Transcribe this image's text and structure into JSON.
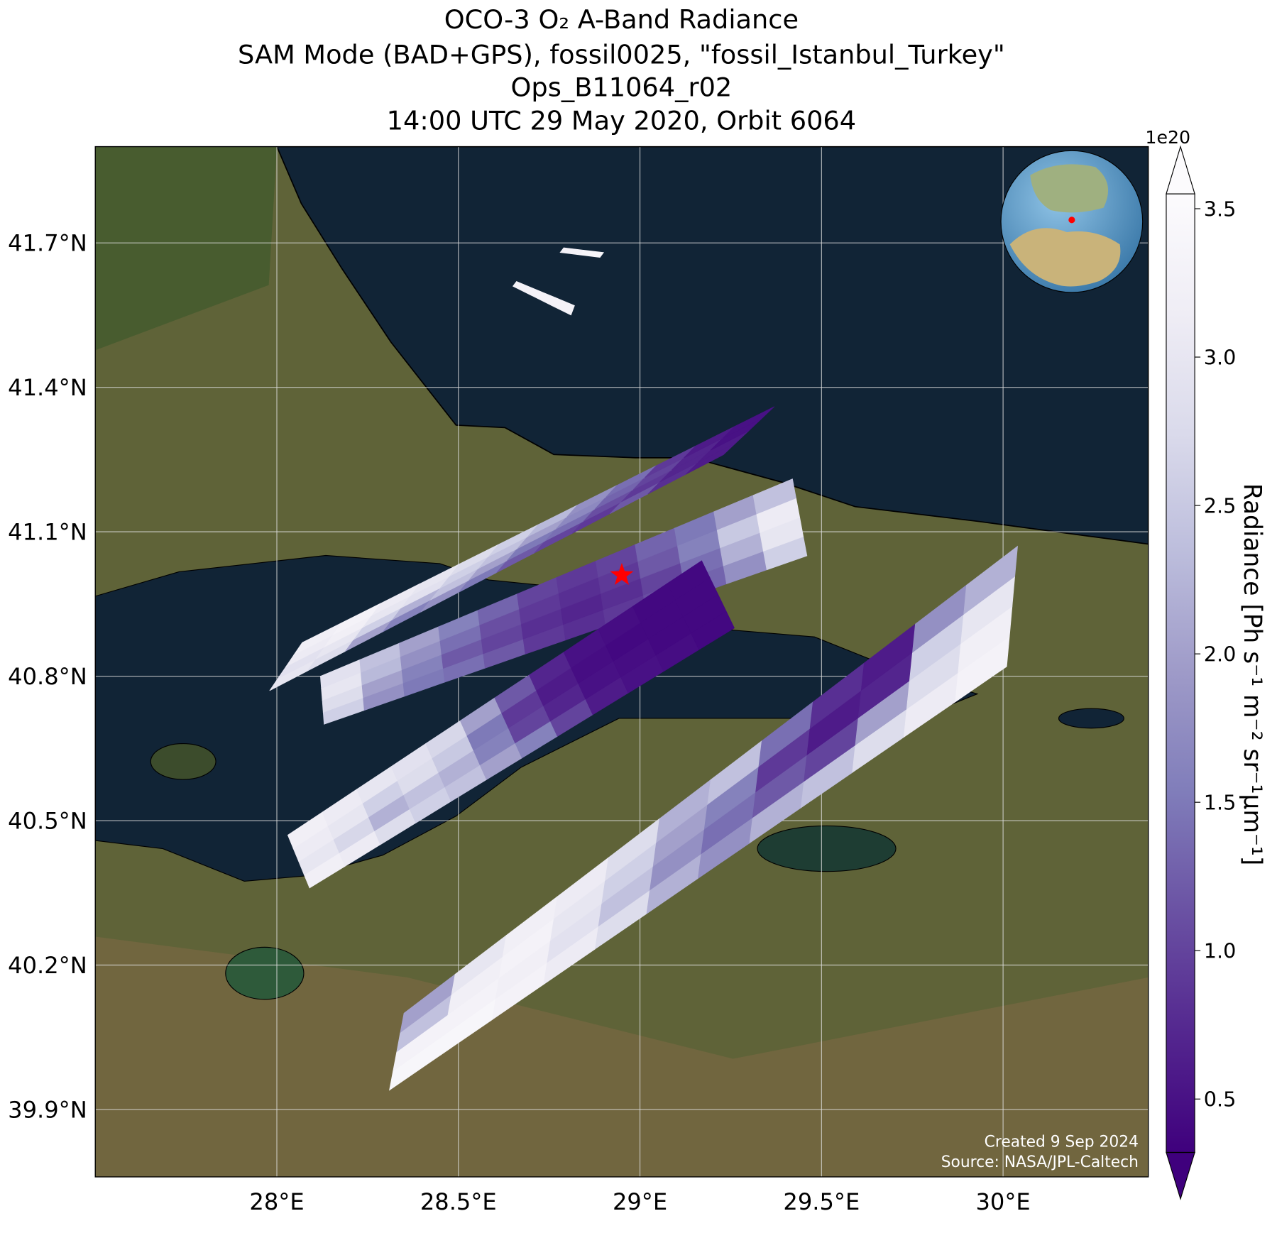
{
  "chart_data": {
    "type": "map",
    "title_lines": [
      "OCO-3 O₂ A-Band Radiance",
      "SAM Mode (BAD+GPS), fossil0025, \"fossil_Istanbul_Turkey\"",
      "Ops_B11064_r02",
      "14:00 UTC 29 May 2020, Orbit 6064"
    ],
    "xlim": [
      27.5,
      30.4
    ],
    "ylim": [
      39.76,
      41.9
    ],
    "xticks": [
      {
        "value": 28,
        "label": "28°E"
      },
      {
        "value": 28.5,
        "label": "28.5°E"
      },
      {
        "value": 29,
        "label": "29°E"
      },
      {
        "value": 29.5,
        "label": "29.5°E"
      },
      {
        "value": 30,
        "label": "30°E"
      }
    ],
    "yticks": [
      {
        "value": 39.9,
        "label": "39.9°N"
      },
      {
        "value": 40.2,
        "label": "40.2°N"
      },
      {
        "value": 40.5,
        "label": "40.5°N"
      },
      {
        "value": 40.8,
        "label": "40.8°N"
      },
      {
        "value": 41.1,
        "label": "41.1°N"
      },
      {
        "value": 41.4,
        "label": "41.4°N"
      },
      {
        "value": 41.7,
        "label": "41.7°N"
      }
    ],
    "grid": true,
    "colorbar": {
      "label": "Radiance [Ph s⁻¹ m⁻² sr⁻¹μm⁻¹]",
      "exponent_label": "1e20",
      "clim": [
        0.32,
        3.55
      ],
      "ticks": [
        0.5,
        {
          "value": 1,
          "label": "1.0"
        },
        1.5,
        {
          "value": 2,
          "label": "2.0"
        },
        2.5,
        {
          "value": 3,
          "label": "3.0"
        },
        3.5
      ],
      "colormap": [
        "#3f007d",
        "#54278f",
        "#6a51a3",
        "#807dba",
        "#9e9ac8",
        "#bcbddc",
        "#dadaeb",
        "#efedf5",
        "#fcfbfd"
      ]
    },
    "swaths": [
      {
        "corners": [
          [
            27.98,
            40.77
          ],
          [
            29.23,
            41.26
          ],
          [
            29.37,
            41.36
          ],
          [
            28.07,
            40.87
          ]
        ],
        "values": [
          [
            3.0,
            2.8,
            2.0,
            1.6,
            1.8,
            1.5,
            1.2,
            1.0,
            0.9,
            1.2,
            0.8,
            0.6
          ],
          [
            2.9,
            3.0,
            2.6,
            2.2,
            2.4,
            2.0,
            1.5,
            1.4,
            1.1,
            0.9,
            0.7,
            0.6
          ],
          [
            3.1,
            3.2,
            3.0,
            2.9,
            2.6,
            2.4,
            2.0,
            1.7,
            1.3,
            1.0,
            0.7,
            0.5
          ],
          [
            3.2,
            3.3,
            3.1,
            3.0,
            2.8,
            2.6,
            2.3,
            1.8,
            1.4,
            0.9,
            0.6,
            0.5
          ]
        ]
      },
      {
        "corners": [
          [
            28.13,
            40.7
          ],
          [
            29.46,
            41.05
          ],
          [
            29.42,
            41.21
          ],
          [
            28.12,
            40.8
          ]
        ],
        "values": [
          [
            2.6,
            1.8,
            1.5,
            1.4,
            1.2,
            0.9,
            0.8,
            0.9,
            1.1,
            1.3,
            1.8,
            2.6
          ],
          [
            2.8,
            2.0,
            1.6,
            1.2,
            1.0,
            0.8,
            0.7,
            0.8,
            1.0,
            1.4,
            2.2,
            3.0
          ],
          [
            3.0,
            2.3,
            1.8,
            1.4,
            1.1,
            0.9,
            0.8,
            0.9,
            1.2,
            1.6,
            2.5,
            3.1
          ],
          [
            2.9,
            2.4,
            2.0,
            1.6,
            1.3,
            1.0,
            0.9,
            1.0,
            1.3,
            1.5,
            2.0,
            2.4
          ]
        ]
      },
      {
        "corners": [
          [
            28.09,
            40.36
          ],
          [
            29.26,
            40.9
          ],
          [
            29.17,
            41.04
          ],
          [
            28.03,
            40.47
          ]
        ],
        "values": [
          [
            3.2,
            3.1,
            2.8,
            2.6,
            2.4,
            2.0,
            1.6,
            1.0,
            0.6,
            0.5,
            0.45,
            0.4
          ],
          [
            3.0,
            2.7,
            2.2,
            2.4,
            2.2,
            1.6,
            1.0,
            0.7,
            0.5,
            0.45,
            0.4,
            0.4
          ],
          [
            3.1,
            3.0,
            2.6,
            2.8,
            2.5,
            1.5,
            0.9,
            0.6,
            0.45,
            0.4,
            0.4,
            0.4
          ],
          [
            3.2,
            3.1,
            3.0,
            2.9,
            2.7,
            2.0,
            1.2,
            0.7,
            0.5,
            0.45,
            0.4,
            0.4
          ]
        ]
      },
      {
        "corners": [
          [
            28.31,
            39.94
          ],
          [
            30.01,
            40.82
          ],
          [
            30.04,
            41.07
          ],
          [
            28.35,
            40.1
          ]
        ],
        "values": [
          [
            3.4,
            3.4,
            3.3,
            3.1,
            2.8,
            2.2,
            1.8,
            2.2,
            2.4,
            2.8,
            3.1,
            3.3
          ],
          [
            3.3,
            3.3,
            3.2,
            2.9,
            2.4,
            1.8,
            1.4,
            1.2,
            1.0,
            2.0,
            2.8,
            3.2
          ],
          [
            2.4,
            3.2,
            3.3,
            3.0,
            2.6,
            2.0,
            1.6,
            0.9,
            0.6,
            0.7,
            2.6,
            3.0
          ],
          [
            2.0,
            3.0,
            3.2,
            3.1,
            2.8,
            2.2,
            2.4,
            1.4,
            0.8,
            0.6,
            1.8,
            2.2
          ]
        ]
      },
      {
        "corners": [
          [
            28.65,
            41.61
          ],
          [
            28.81,
            41.55
          ],
          [
            28.82,
            41.57
          ],
          [
            28.66,
            41.62
          ]
        ],
        "values": [
          [
            3.3,
            3.3,
            3.3
          ]
        ]
      },
      {
        "corners": [
          [
            28.78,
            41.68
          ],
          [
            28.89,
            41.67
          ],
          [
            28.9,
            41.68
          ],
          [
            28.79,
            41.69
          ]
        ],
        "values": [
          [
            3.3,
            3.4
          ]
        ]
      }
    ],
    "target": {
      "lon": 28.95,
      "lat": 41.01,
      "color": "#ff0000"
    },
    "annotations": [
      "Created 9 Sep 2024",
      "Source: NASA/JPL-Caltech"
    ]
  }
}
